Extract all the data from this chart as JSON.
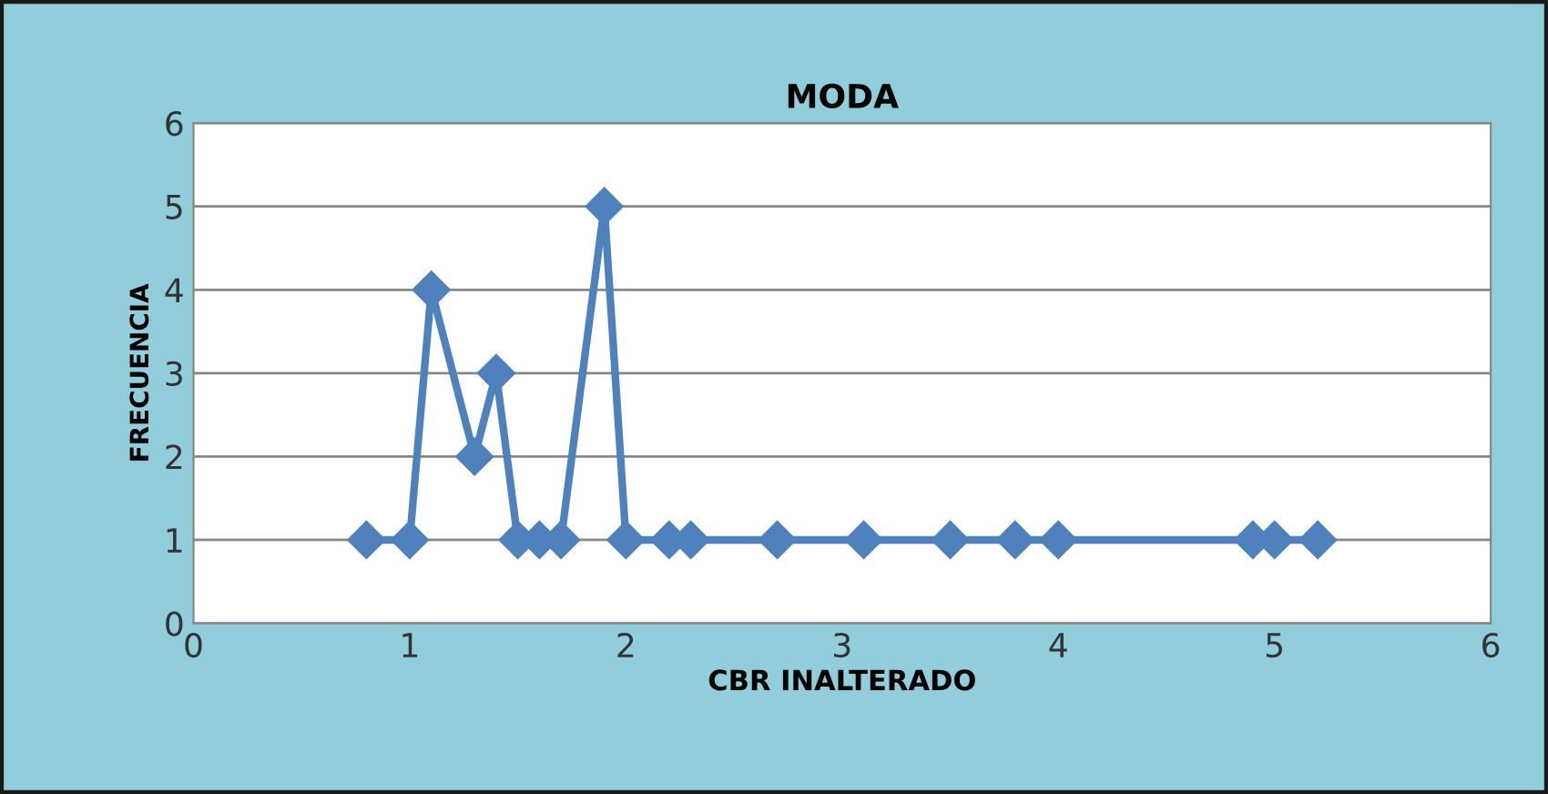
{
  "chart_data": {
    "type": "line",
    "title": "MODA",
    "xlabel": "CBR INALTERADO",
    "ylabel": "FRECUENCIA",
    "x": [
      0.8,
      1.0,
      1.1,
      1.3,
      1.4,
      1.5,
      1.6,
      1.7,
      1.9,
      2.0,
      2.2,
      2.3,
      2.7,
      3.1,
      3.5,
      3.8,
      4.0,
      4.9,
      5.0,
      5.2
    ],
    "series": [
      {
        "color": "#4f81bd",
        "values": [
          1,
          1,
          4,
          2,
          3,
          1,
          1,
          1,
          5,
          1,
          1,
          1,
          1,
          1,
          1,
          1,
          1,
          1,
          1,
          1
        ]
      }
    ],
    "xlim": [
      0,
      6
    ],
    "xticks": [
      0,
      1,
      2,
      3,
      4,
      5,
      6
    ],
    "ylim": [
      0,
      6
    ],
    "yticks": [
      0,
      1,
      2,
      3,
      4,
      5,
      6
    ],
    "grid": "y",
    "marker": "diamond",
    "line_style": "solid"
  }
}
